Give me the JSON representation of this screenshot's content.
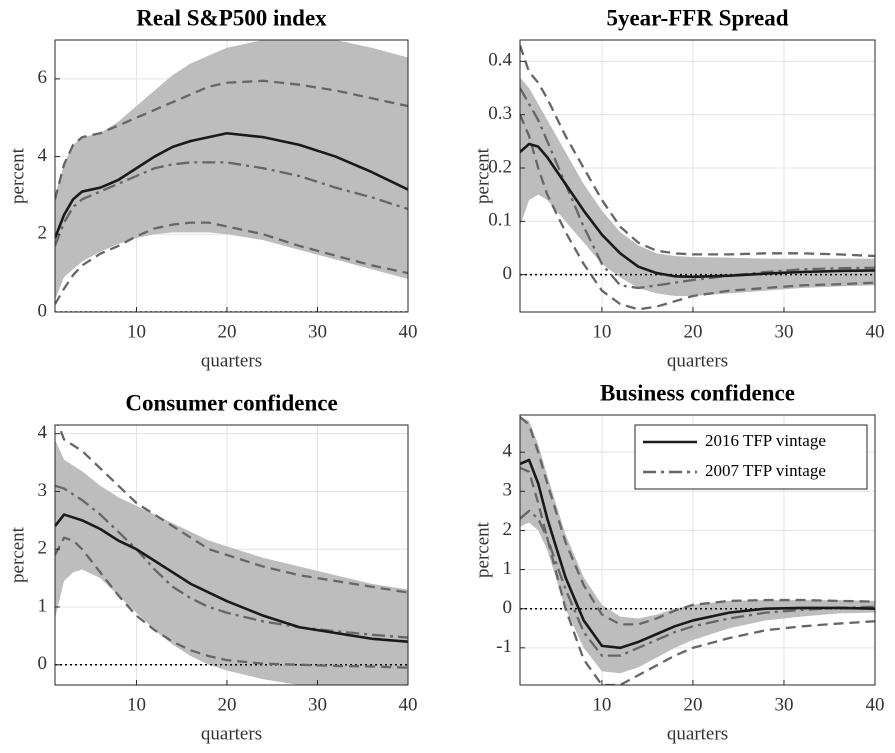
{
  "chart_data": [
    {
      "type": "line",
      "title": "Real S&P500 index",
      "xlabel": "quarters",
      "ylabel": "percent",
      "x": [
        1,
        2,
        3,
        4,
        6,
        8,
        10,
        12,
        14,
        16,
        18,
        20,
        24,
        28,
        32,
        36,
        40
      ],
      "xlim": [
        1,
        40
      ],
      "xticks": [
        10,
        20,
        30,
        40
      ],
      "ylim": [
        0,
        7
      ],
      "yticks": [
        0,
        2,
        4,
        6
      ],
      "grid": true,
      "hline": 0,
      "band": {
        "color": "#bdbdbd",
        "upper": [
          3.0,
          3.8,
          4.3,
          4.5,
          4.6,
          4.9,
          5.3,
          5.7,
          6.1,
          6.4,
          6.6,
          6.8,
          7.0,
          7.0,
          7.0,
          6.8,
          6.55
        ],
        "lower": [
          0.3,
          0.9,
          1.1,
          1.3,
          1.55,
          1.75,
          1.9,
          2.0,
          2.05,
          2.05,
          2.05,
          2.0,
          1.85,
          1.6,
          1.35,
          1.1,
          0.85
        ]
      },
      "series": [
        {
          "color": "#1a1a1a",
          "style": "solid",
          "values": [
            1.9,
            2.5,
            2.9,
            3.1,
            3.2,
            3.4,
            3.7,
            4.0,
            4.25,
            4.4,
            4.5,
            4.6,
            4.5,
            4.3,
            4.0,
            3.6,
            3.15
          ]
        },
        {
          "color": "#666666",
          "style": "dashdot",
          "values": [
            1.7,
            2.3,
            2.7,
            2.9,
            3.1,
            3.3,
            3.5,
            3.7,
            3.8,
            3.85,
            3.85,
            3.85,
            3.7,
            3.5,
            3.2,
            2.95,
            2.65
          ]
        },
        {
          "color": "#666666",
          "style": "dashed",
          "values": [
            2.9,
            3.8,
            4.3,
            4.5,
            4.6,
            4.8,
            5.0,
            5.2,
            5.4,
            5.6,
            5.8,
            5.9,
            5.95,
            5.85,
            5.7,
            5.5,
            5.3
          ]
        },
        {
          "color": "#666666",
          "style": "dashed",
          "values": [
            0.2,
            0.6,
            0.95,
            1.2,
            1.5,
            1.7,
            1.95,
            2.15,
            2.25,
            2.3,
            2.3,
            2.2,
            2.0,
            1.7,
            1.45,
            1.2,
            1.0
          ]
        }
      ]
    },
    {
      "type": "line",
      "title": "5year-FFR Spread",
      "xlabel": "quarters",
      "ylabel": "percent",
      "x": [
        1,
        2,
        3,
        4,
        6,
        8,
        10,
        12,
        14,
        16,
        18,
        20,
        24,
        28,
        32,
        36,
        40
      ],
      "xlim": [
        1,
        40
      ],
      "xticks": [
        10,
        20,
        30,
        40
      ],
      "ylim": [
        -0.07,
        0.44
      ],
      "yticks": [
        0,
        0.1,
        0.2,
        0.3,
        0.4
      ],
      "grid": true,
      "hline": 0,
      "band": {
        "color": "#bdbdbd",
        "upper": [
          0.37,
          0.35,
          0.32,
          0.29,
          0.23,
          0.17,
          0.12,
          0.08,
          0.055,
          0.04,
          0.035,
          0.033,
          0.032,
          0.03,
          0.03,
          0.03,
          0.03
        ],
        "lower": [
          0.09,
          0.14,
          0.15,
          0.14,
          0.1,
          0.06,
          0.02,
          -0.005,
          -0.025,
          -0.035,
          -0.04,
          -0.04,
          -0.035,
          -0.03,
          -0.025,
          -0.022,
          -0.02
        ]
      },
      "series": [
        {
          "color": "#1a1a1a",
          "style": "solid",
          "values": [
            0.23,
            0.245,
            0.24,
            0.22,
            0.17,
            0.12,
            0.075,
            0.04,
            0.015,
            0.003,
            -0.003,
            -0.004,
            -0.002,
            0.002,
            0.005,
            0.007,
            0.008
          ]
        },
        {
          "color": "#666666",
          "style": "dashdot",
          "values": [
            0.35,
            0.32,
            0.29,
            0.25,
            0.17,
            0.09,
            0.02,
            -0.02,
            -0.025,
            -0.02,
            -0.015,
            -0.01,
            -0.002,
            0.005,
            0.01,
            0.012,
            0.013
          ]
        },
        {
          "color": "#666666",
          "style": "dashed",
          "values": [
            0.43,
            0.38,
            0.36,
            0.33,
            0.26,
            0.2,
            0.14,
            0.09,
            0.06,
            0.045,
            0.04,
            0.038,
            0.038,
            0.04,
            0.04,
            0.038,
            0.035
          ]
        },
        {
          "color": "#666666",
          "style": "dashed",
          "values": [
            0.3,
            0.26,
            0.2,
            0.15,
            0.08,
            0.02,
            -0.03,
            -0.055,
            -0.065,
            -0.06,
            -0.05,
            -0.04,
            -0.03,
            -0.025,
            -0.02,
            -0.018,
            -0.015
          ]
        }
      ]
    },
    {
      "type": "line",
      "title": "Consumer confidence",
      "xlabel": "quarters",
      "ylabel": "percent",
      "x": [
        1,
        2,
        3,
        4,
        6,
        8,
        10,
        12,
        14,
        16,
        18,
        20,
        24,
        28,
        32,
        36,
        40
      ],
      "xlim": [
        1,
        40
      ],
      "xticks": [
        10,
        20,
        30,
        40
      ],
      "ylim": [
        -0.35,
        4.15
      ],
      "yticks": [
        0,
        1,
        2,
        3,
        4
      ],
      "grid": true,
      "hline": 0,
      "band": {
        "color": "#bdbdbd",
        "upper": [
          3.9,
          3.55,
          3.45,
          3.35,
          3.1,
          2.9,
          2.75,
          2.6,
          2.45,
          2.3,
          2.15,
          2.05,
          1.85,
          1.7,
          1.55,
          1.4,
          1.3
        ],
        "lower": [
          0.8,
          1.45,
          1.6,
          1.65,
          1.5,
          1.2,
          0.9,
          0.6,
          0.35,
          0.15,
          0.0,
          -0.1,
          -0.25,
          -0.35,
          -0.4,
          -0.45,
          -0.45
        ]
      },
      "series": [
        {
          "color": "#1a1a1a",
          "style": "solid",
          "values": [
            2.4,
            2.6,
            2.55,
            2.5,
            2.35,
            2.15,
            2.0,
            1.8,
            1.6,
            1.4,
            1.25,
            1.1,
            0.85,
            0.65,
            0.55,
            0.45,
            0.4
          ]
        },
        {
          "color": "#666666",
          "style": "dashdot",
          "values": [
            3.1,
            3.05,
            2.95,
            2.85,
            2.6,
            2.3,
            2.0,
            1.65,
            1.35,
            1.15,
            1.0,
            0.9,
            0.75,
            0.65,
            0.58,
            0.52,
            0.47
          ]
        },
        {
          "color": "#666666",
          "style": "dashed",
          "values": [
            4.3,
            3.9,
            3.8,
            3.7,
            3.4,
            3.1,
            2.8,
            2.6,
            2.4,
            2.2,
            2.0,
            1.9,
            1.7,
            1.55,
            1.45,
            1.35,
            1.25
          ]
        },
        {
          "color": "#666666",
          "style": "dashed",
          "values": [
            1.9,
            2.2,
            2.15,
            2.0,
            1.6,
            1.2,
            0.85,
            0.6,
            0.4,
            0.25,
            0.15,
            0.08,
            0.02,
            0.0,
            -0.02,
            -0.03,
            -0.05
          ]
        }
      ]
    },
    {
      "type": "line",
      "title": "Business confidence",
      "xlabel": "quarters",
      "ylabel": "percent",
      "x": [
        1,
        2,
        3,
        4,
        6,
        8,
        10,
        12,
        14,
        16,
        18,
        20,
        24,
        28,
        32,
        36,
        40
      ],
      "xlim": [
        1,
        40
      ],
      "xticks": [
        10,
        20,
        30,
        40
      ],
      "ylim": [
        -1.95,
        4.95
      ],
      "yticks": [
        -1,
        0,
        1,
        2,
        3,
        4
      ],
      "grid": true,
      "hline": 0,
      "legend": "upper right",
      "band": {
        "color": "#bdbdbd",
        "upper": [
          4.9,
          4.8,
          4.2,
          3.4,
          1.9,
          0.8,
          0.1,
          -0.2,
          -0.25,
          -0.15,
          0.0,
          0.1,
          0.2,
          0.22,
          0.22,
          0.22,
          0.2
        ],
        "lower": [
          2.1,
          2.2,
          2.0,
          1.5,
          0.0,
          -1.0,
          -1.6,
          -1.65,
          -1.5,
          -1.25,
          -1.0,
          -0.8,
          -0.5,
          -0.3,
          -0.2,
          -0.12,
          -0.1
        ]
      },
      "series": [
        {
          "name": "2016 TFP vintage",
          "color": "#1a1a1a",
          "style": "solid",
          "values": [
            3.7,
            3.8,
            3.2,
            2.3,
            0.8,
            -0.3,
            -0.95,
            -1.0,
            -0.85,
            -0.65,
            -0.45,
            -0.3,
            -0.1,
            0.0,
            0.02,
            0.02,
            0.0
          ]
        },
        {
          "name": "2007 TFP vintage",
          "color": "#666666",
          "style": "dashdot",
          "values": [
            2.3,
            2.5,
            2.3,
            1.8,
            0.5,
            -0.6,
            -1.2,
            -1.2,
            -1.0,
            -0.8,
            -0.6,
            -0.45,
            -0.25,
            -0.1,
            -0.03,
            0.02,
            0.05
          ]
        },
        {
          "color": "#666666",
          "style": "dashed",
          "values": [
            4.9,
            4.7,
            4.0,
            3.2,
            1.7,
            0.6,
            -0.15,
            -0.4,
            -0.4,
            -0.25,
            -0.05,
            0.1,
            0.2,
            0.22,
            0.22,
            0.2,
            0.18
          ]
        },
        {
          "color": "#666666",
          "style": "dashed",
          "values": [
            3.6,
            3.5,
            2.7,
            1.8,
            0.0,
            -1.3,
            -1.95,
            -1.95,
            -1.7,
            -1.45,
            -1.2,
            -1.0,
            -0.75,
            -0.55,
            -0.45,
            -0.38,
            -0.32
          ]
        }
      ]
    }
  ]
}
